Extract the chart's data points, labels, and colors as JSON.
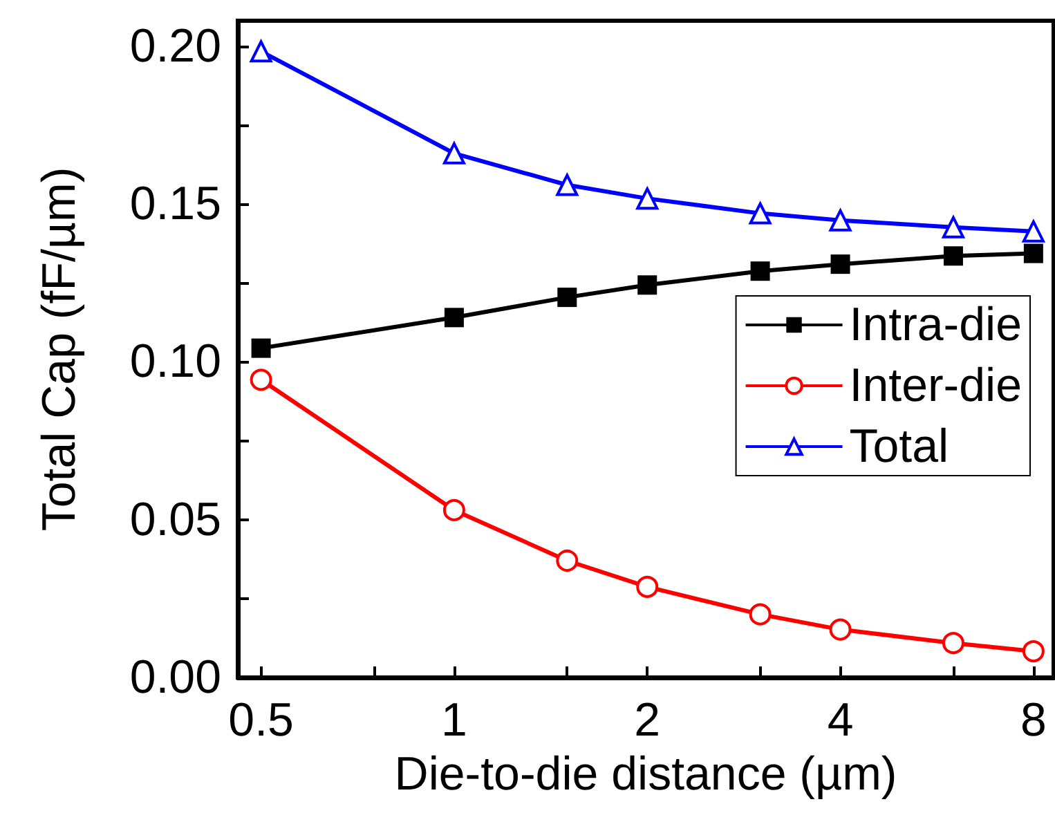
{
  "chart_data": {
    "type": "line",
    "xlabel": "Die-to-die distance (µm)",
    "ylabel": "Total Cap (fF/µm)",
    "x": [
      0.5,
      1,
      1.5,
      2,
      3,
      4,
      6,
      8
    ],
    "series": [
      {
        "name": "Intra-die",
        "color": "#000000",
        "marker": "square",
        "values": [
          0.1043,
          0.114,
          0.1204,
          0.1243,
          0.1287,
          0.1309,
          0.1335,
          0.1343
        ]
      },
      {
        "name": "Inter-die",
        "color": "#ff0000",
        "marker": "circle",
        "values": [
          0.0943,
          0.053,
          0.037,
          0.0287,
          0.02,
          0.0152,
          0.0109,
          0.0083
        ]
      },
      {
        "name": "Total",
        "color": "#0000ff",
        "marker": "triangle",
        "values": [
          0.1983,
          0.166,
          0.156,
          0.1517,
          0.147,
          0.1448,
          0.1426,
          0.1413
        ]
      }
    ],
    "log": "x",
    "xlim": [
      0.46,
      8.6
    ],
    "ylim": [
      0,
      0.208
    ],
    "xticks": [
      0.5,
      {
        "value": 0.75,
        "label": null
      },
      1,
      {
        "value": 1.5,
        "label": null
      },
      2,
      {
        "value": 3,
        "label": null
      },
      4,
      {
        "value": 6,
        "label": null
      },
      8
    ],
    "yticks": [
      {
        "value": 0,
        "label": "0.00"
      },
      {
        "value": 0.025,
        "label": null
      },
      {
        "value": 0.05,
        "label": "0.05"
      },
      {
        "value": 0.075,
        "label": null
      },
      {
        "value": 0.1,
        "label": "0.10"
      },
      {
        "value": 0.125,
        "label": null
      },
      {
        "value": 0.15,
        "label": "0.15"
      },
      {
        "value": 0.175,
        "label": null
      },
      {
        "value": 0.2,
        "label": "0.20"
      }
    ],
    "grid": false,
    "legend": "right",
    "line_style": "solid"
  }
}
